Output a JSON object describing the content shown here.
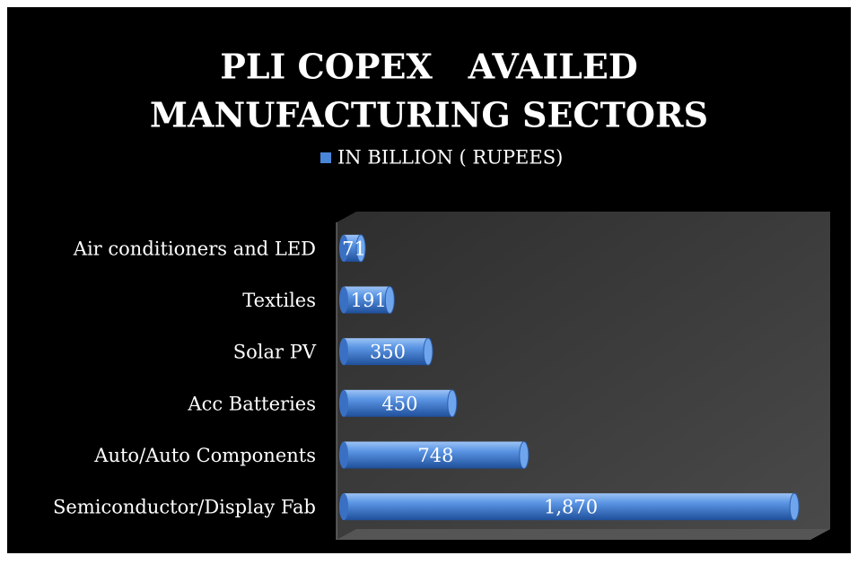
{
  "chart_data": {
    "type": "bar",
    "orientation": "horizontal",
    "title": [
      "PLI COPEX   AVAILED",
      "MANUFACTURING SECTORS"
    ],
    "categories": [
      "Air conditioners and LED",
      "Textiles",
      "Solar PV",
      "Acc Batteries",
      "Auto/Auto Components",
      "Semiconductor/Display Fab"
    ],
    "series": [
      {
        "name": "IN BILLION ( RUPEES)",
        "color": "#4a86d8",
        "values": [
          71,
          191,
          350,
          450,
          748,
          1870
        ],
        "value_labels": [
          "71",
          "191",
          "350",
          "450",
          "748",
          "1,870"
        ]
      }
    ],
    "xlim": [
      0,
      2000
    ],
    "legend": "top"
  }
}
